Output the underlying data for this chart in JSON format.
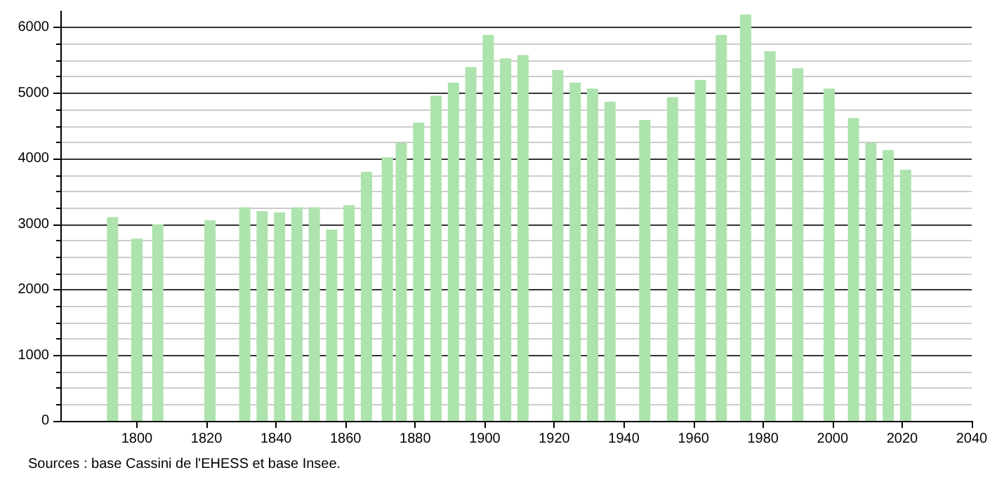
{
  "chart_data": {
    "type": "bar",
    "x": [
      1793,
      1800,
      1806,
      1821,
      1831,
      1836,
      1841,
      1846,
      1851,
      1856,
      1861,
      1866,
      1872,
      1876,
      1881,
      1886,
      1891,
      1896,
      1901,
      1906,
      1911,
      1921,
      1926,
      1931,
      1936,
      1946,
      1954,
      1962,
      1968,
      1975,
      1982,
      1990,
      1999,
      2006,
      2011,
      2016,
      2021
    ],
    "values": [
      3110,
      2780,
      3000,
      3060,
      3260,
      3200,
      3180,
      3260,
      3260,
      2920,
      3290,
      3800,
      4020,
      4240,
      4550,
      4960,
      5160,
      5400,
      5890,
      5530,
      5580,
      5350,
      5160,
      5070,
      4870,
      4590,
      4940,
      5200,
      5890,
      6200,
      5640,
      5380,
      5070,
      4620,
      4240,
      4130,
      3830
    ],
    "color": "#ade3ad",
    "xlim": [
      1778,
      2040
    ],
    "xticks": [
      1800,
      1820,
      1840,
      1860,
      1880,
      1900,
      1920,
      1940,
      1960,
      1980,
      2000,
      2020,
      2040
    ],
    "ylim": [
      0,
      6250
    ],
    "yticks": [
      0,
      1000,
      2000,
      3000,
      4000,
      5000,
      6000
    ],
    "grid": "y",
    "annotations": [
      "Sources : base Cassini de l'EHESS et base Insee."
    ]
  }
}
